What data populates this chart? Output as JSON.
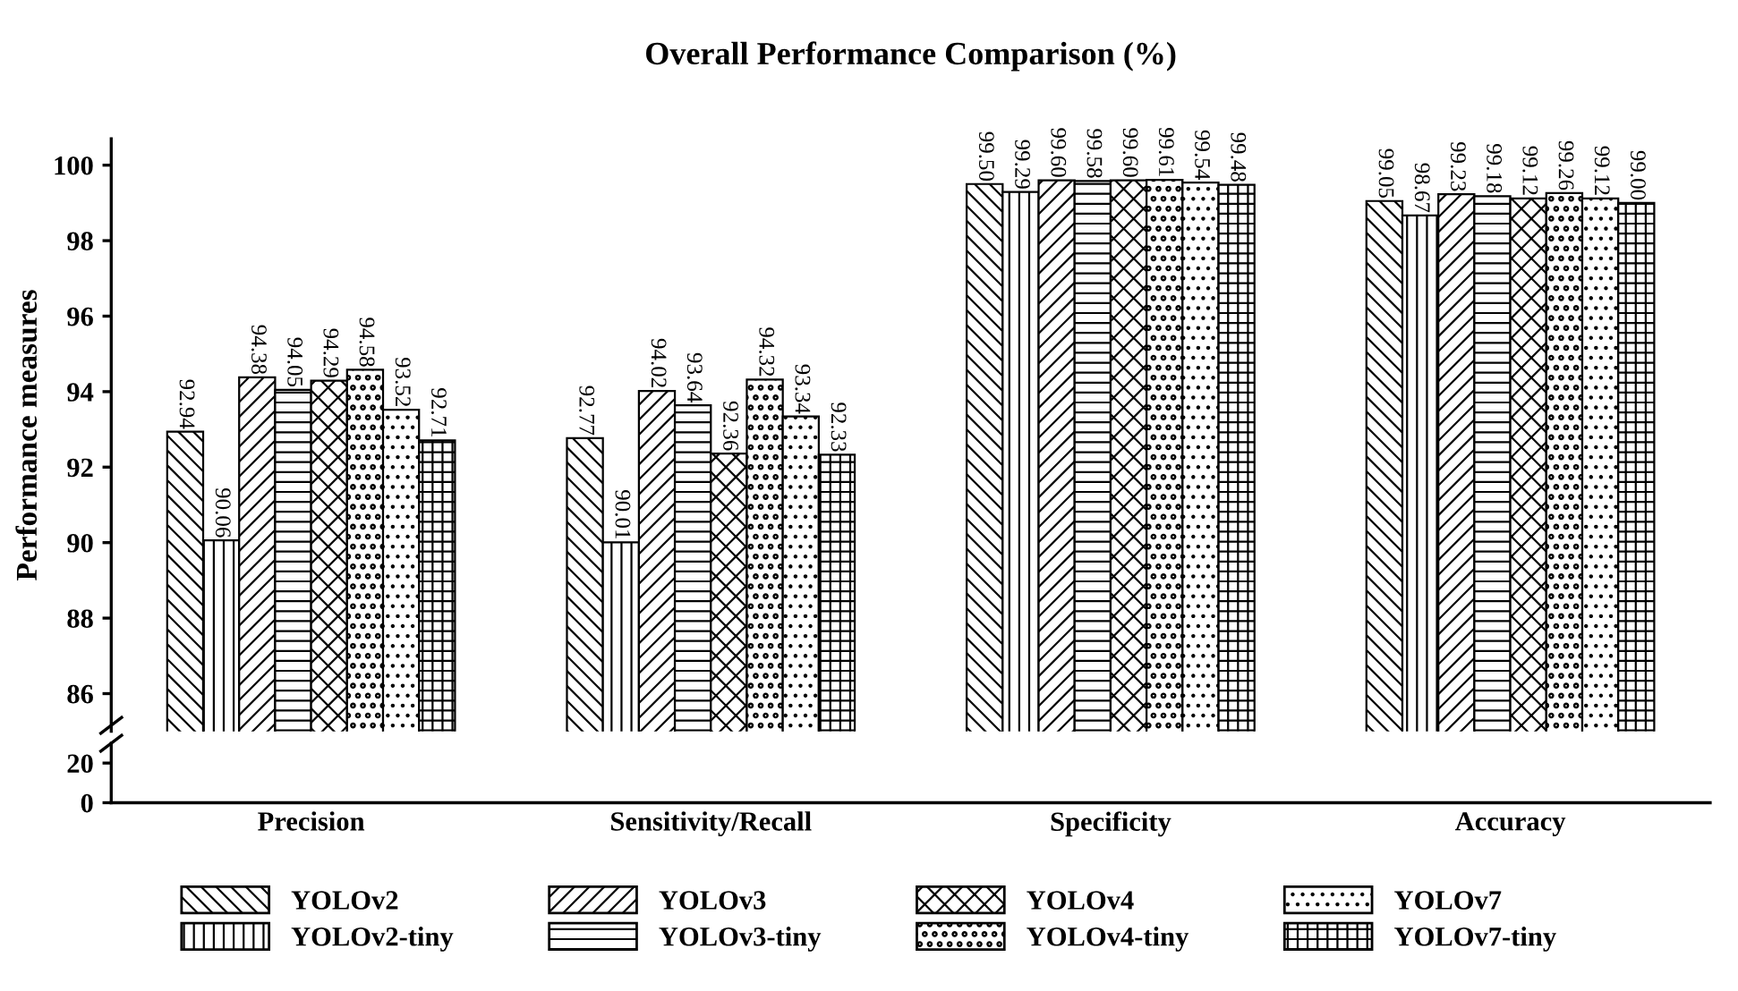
{
  "chart_data": [
    {
      "type": "bar",
      "title": "Overall Performance Comparison (%)",
      "ylabel": "Performance measures",
      "categories": [
        null,
        null,
        null,
        null
      ],
      "series": [
        {
          "name": "YOLOv2",
          "color": "#000000",
          "values": [
            92.94,
            92.77,
            99.5,
            99.05
          ],
          "value_labels": [
            "92.94",
            "92.77",
            "99.50",
            "99.05"
          ]
        },
        {
          "name": "YOLOv2-tiny",
          "color": "#000000",
          "values": [
            90.06,
            90.01,
            99.29,
            98.67
          ],
          "value_labels": [
            "90.06",
            "90.01",
            "99.29",
            "98.67"
          ]
        },
        {
          "name": "YOLOv3",
          "color": "#000000",
          "values": [
            94.38,
            94.02,
            99.6,
            99.23
          ],
          "value_labels": [
            "94.38",
            "94.02",
            "99.60",
            "99.23"
          ]
        },
        {
          "name": "YOLOv3-tiny",
          "color": "#000000",
          "values": [
            94.05,
            93.64,
            99.58,
            99.18
          ],
          "value_labels": [
            "94.05",
            "93.64",
            "99.58",
            "99.18"
          ]
        },
        {
          "name": "YOLOv4",
          "color": "#000000",
          "values": [
            94.29,
            92.36,
            99.6,
            99.12
          ],
          "value_labels": [
            "94.29",
            "92.36",
            "99.60",
            "99.12"
          ]
        },
        {
          "name": "YOLOv4-tiny",
          "color": "#000000",
          "values": [
            94.58,
            94.32,
            99.61,
            99.26
          ],
          "value_labels": [
            "94.58",
            "94.32",
            "99.61",
            "99.26"
          ]
        },
        {
          "name": "YOLOv7",
          "color": "#000000",
          "values": [
            93.52,
            93.34,
            99.54,
            99.12
          ],
          "value_labels": [
            "93.52",
            "93.34",
            "99.54",
            "99.12"
          ]
        },
        {
          "name": "YOLOv7-tiny",
          "color": "#000000",
          "values": [
            92.71,
            92.33,
            99.48,
            99.0
          ],
          "value_labels": [
            "92.71",
            "92.33",
            "99.48",
            "99.00"
          ]
        }
      ],
      "ylim": [
        85,
        100.7
      ],
      "yticks": [
        86,
        88,
        90,
        92,
        94,
        96,
        98,
        100
      ],
      "tick_labels": "y",
      "grid": false,
      "legend": "bottom"
    },
    {
      "type": "bar",
      "categories": [
        "Precision",
        "Sensitivity/Recall",
        "Specificity",
        "Accuracy"
      ],
      "ylim": [
        0,
        30
      ],
      "yticks": [
        0,
        20
      ],
      "grid": false
    }
  ]
}
